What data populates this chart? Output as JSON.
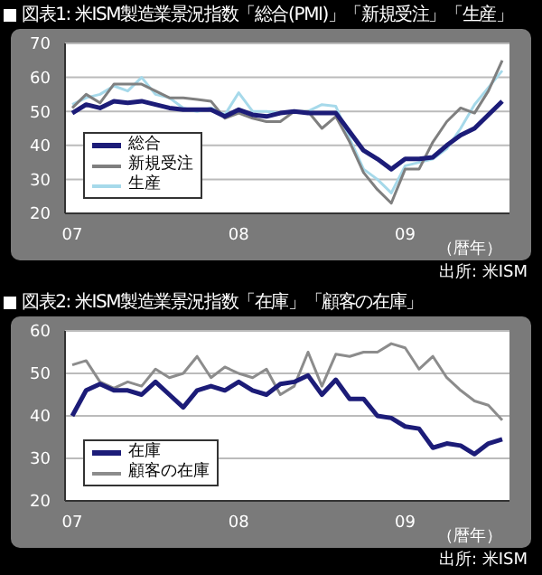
{
  "chart_data": [
    {
      "type": "line",
      "title": "図表1: 米ISM製造業景況指数「総合(PMI)」「新規受注」「生産」",
      "xlabel": "（暦年）",
      "categories": [
        "07",
        null,
        null,
        null,
        null,
        null,
        null,
        null,
        null,
        null,
        null,
        null,
        "08",
        null,
        null,
        null,
        null,
        null,
        null,
        null,
        null,
        null,
        null,
        null,
        "09",
        null,
        null,
        null,
        null,
        null,
        null,
        null
      ],
      "series": [
        {
          "name": "総合",
          "color": "#1c1c78",
          "values": [
            49.5,
            52,
            51,
            53,
            52.5,
            53,
            52,
            51,
            50.5,
            50.5,
            50.5,
            48.5,
            50.5,
            49,
            48.5,
            49.5,
            50,
            49.5,
            49.5,
            49.5,
            44,
            38.5,
            36,
            33,
            36,
            36,
            36.5,
            40,
            43,
            45,
            49,
            53
          ]
        },
        {
          "name": "新規受注",
          "color": "#7f7f7f",
          "values": [
            51,
            55,
            52.5,
            58,
            58,
            58,
            56,
            54,
            54,
            53.5,
            53,
            48,
            49.5,
            48,
            47,
            47,
            50,
            50,
            45,
            48.5,
            41,
            32,
            27,
            23,
            33,
            33,
            41,
            47,
            51,
            49.5,
            56,
            65
          ]
        },
        {
          "name": "生産",
          "color": "#a6d9ea",
          "values": [
            52,
            54,
            55,
            57.5,
            56,
            60,
            55,
            54,
            51,
            50,
            51,
            49,
            55.5,
            50,
            50,
            49.5,
            50,
            50,
            52,
            51.5,
            42,
            33,
            30,
            26,
            34,
            35,
            36,
            39,
            45,
            52,
            57,
            62
          ]
        }
      ],
      "ylim": [
        20,
        70
      ],
      "yticks": [
        20,
        30,
        40,
        50,
        60,
        70
      ],
      "grid": "y",
      "legend": "bottom left",
      "annotations": [
        "出所: 米ISM"
      ]
    },
    {
      "type": "line",
      "title": "図表2: 米ISM製造業景況指数「在庫」「顧客の在庫」",
      "xlabel": "（暦年）",
      "categories": [
        "07",
        null,
        null,
        null,
        null,
        null,
        null,
        null,
        null,
        null,
        null,
        null,
        "08",
        null,
        null,
        null,
        null,
        null,
        null,
        null,
        null,
        null,
        null,
        null,
        "09",
        null,
        null,
        null,
        null,
        null,
        null,
        null
      ],
      "series": [
        {
          "name": "在庫",
          "color": "#1c1c78",
          "values": [
            40,
            46,
            47.5,
            46,
            46,
            45,
            48,
            45,
            42,
            46,
            47,
            46,
            48,
            46,
            45,
            47.5,
            48,
            49.5,
            45,
            48.5,
            44,
            44,
            40,
            39.5,
            37.5,
            37,
            32.5,
            33.5,
            33,
            31,
            33.5,
            34.5
          ]
        },
        {
          "name": "顧客の在庫",
          "color": "#8c8c8c",
          "values": [
            52,
            53,
            48,
            46.5,
            48,
            47,
            51,
            49,
            50,
            54,
            49,
            51.5,
            50,
            49,
            51,
            45,
            47,
            55,
            47,
            54.5,
            54,
            55,
            55,
            57,
            56,
            51,
            54,
            49,
            46,
            43.5,
            42.5,
            39
          ]
        }
      ],
      "ylim": [
        20,
        60
      ],
      "yticks": [
        20,
        30,
        40,
        50,
        60
      ],
      "grid": "y",
      "legend": "bottom left",
      "annotations": [
        "出所: 米ISM"
      ]
    }
  ]
}
